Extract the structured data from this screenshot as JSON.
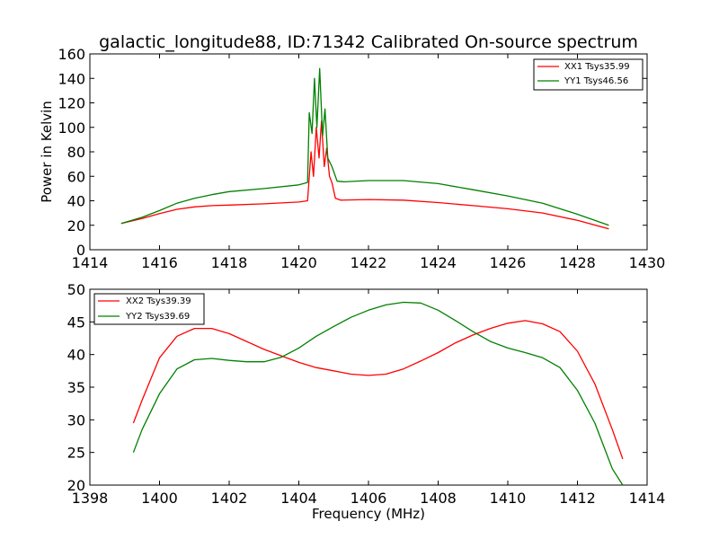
{
  "chart_data": [
    {
      "type": "line",
      "title": "galactic_longitude88, ID:71342 Calibrated On-source spectrum",
      "xlabel": "",
      "ylabel": "Power in Kelvin",
      "xlim": [
        1414,
        1430
      ],
      "ylim": [
        0,
        160
      ],
      "xticks": [
        1414,
        1416,
        1418,
        1420,
        1422,
        1424,
        1426,
        1428,
        1430
      ],
      "yticks": [
        0,
        20,
        40,
        60,
        80,
        100,
        120,
        140,
        160
      ],
      "legend_position": "top-right",
      "grid": false,
      "series": [
        {
          "name": "XX1 Tsys35.99",
          "color": "#ff0000",
          "points": [
            [
              1414.9,
              21.5
            ],
            [
              1415.5,
              25.5
            ],
            [
              1416.0,
              29.5
            ],
            [
              1416.5,
              33.0
            ],
            [
              1417.0,
              35.0
            ],
            [
              1417.5,
              36.0
            ],
            [
              1418.0,
              36.5
            ],
            [
              1419.0,
              37.5
            ],
            [
              1420.0,
              39.0
            ],
            [
              1420.25,
              40.0
            ],
            [
              1420.35,
              80.0
            ],
            [
              1420.42,
              60.0
            ],
            [
              1420.5,
              100.0
            ],
            [
              1420.58,
              75.0
            ],
            [
              1420.65,
              105.0
            ],
            [
              1420.73,
              68.0
            ],
            [
              1420.8,
              83.0
            ],
            [
              1420.88,
              60.0
            ],
            [
              1420.95,
              55.0
            ],
            [
              1421.05,
              42.0
            ],
            [
              1421.2,
              40.5
            ],
            [
              1422.0,
              41.0
            ],
            [
              1423.0,
              40.5
            ],
            [
              1424.0,
              38.5
            ],
            [
              1425.0,
              36.0
            ],
            [
              1426.0,
              33.5
            ],
            [
              1427.0,
              30.0
            ],
            [
              1428.0,
              24.0
            ],
            [
              1428.9,
              17.0
            ]
          ]
        },
        {
          "name": "YY1 Tsys46.56",
          "color": "#008000",
          "points": [
            [
              1414.9,
              21.5
            ],
            [
              1415.5,
              26.5
            ],
            [
              1416.0,
              32.0
            ],
            [
              1416.5,
              38.0
            ],
            [
              1417.0,
              42.0
            ],
            [
              1417.5,
              45.0
            ],
            [
              1418.0,
              47.5
            ],
            [
              1419.0,
              50.0
            ],
            [
              1420.0,
              53.0
            ],
            [
              1420.25,
              55.0
            ],
            [
              1420.3,
              112.0
            ],
            [
              1420.38,
              95.0
            ],
            [
              1420.45,
              140.0
            ],
            [
              1420.52,
              100.0
            ],
            [
              1420.6,
              148.0
            ],
            [
              1420.68,
              93.0
            ],
            [
              1420.75,
              115.0
            ],
            [
              1420.83,
              75.0
            ],
            [
              1420.95,
              68.0
            ],
            [
              1421.1,
              56.0
            ],
            [
              1421.3,
              55.5
            ],
            [
              1422.0,
              56.5
            ],
            [
              1423.0,
              56.5
            ],
            [
              1424.0,
              54.0
            ],
            [
              1425.0,
              49.0
            ],
            [
              1426.0,
              44.0
            ],
            [
              1427.0,
              38.0
            ],
            [
              1428.0,
              29.0
            ],
            [
              1428.9,
              20.0
            ]
          ]
        }
      ]
    },
    {
      "type": "line",
      "title": "",
      "xlabel": "Frequency (MHz)",
      "ylabel": "",
      "xlim": [
        1398,
        1414
      ],
      "ylim": [
        20,
        50
      ],
      "xticks": [
        1398,
        1400,
        1402,
        1404,
        1406,
        1408,
        1410,
        1412,
        1414
      ],
      "yticks": [
        20,
        25,
        30,
        35,
        40,
        45,
        50
      ],
      "legend_position": "top-left",
      "grid": false,
      "series": [
        {
          "name": "XX2 Tsys39.39",
          "color": "#ff0000",
          "points": [
            [
              1399.25,
              29.5
            ],
            [
              1399.5,
              33.0
            ],
            [
              1400.0,
              39.5
            ],
            [
              1400.5,
              42.8
            ],
            [
              1401.0,
              44.0
            ],
            [
              1401.5,
              44.0
            ],
            [
              1402.0,
              43.2
            ],
            [
              1402.5,
              42.0
            ],
            [
              1403.0,
              40.8
            ],
            [
              1403.5,
              39.8
            ],
            [
              1404.0,
              38.8
            ],
            [
              1404.5,
              38.0
            ],
            [
              1405.0,
              37.5
            ],
            [
              1405.5,
              37.0
            ],
            [
              1406.0,
              36.8
            ],
            [
              1406.5,
              37.0
            ],
            [
              1407.0,
              37.8
            ],
            [
              1407.5,
              39.0
            ],
            [
              1408.0,
              40.3
            ],
            [
              1408.5,
              41.8
            ],
            [
              1409.0,
              43.0
            ],
            [
              1409.5,
              44.0
            ],
            [
              1410.0,
              44.8
            ],
            [
              1410.5,
              45.2
            ],
            [
              1411.0,
              44.7
            ],
            [
              1411.5,
              43.5
            ],
            [
              1412.0,
              40.5
            ],
            [
              1412.5,
              35.5
            ],
            [
              1413.0,
              28.5
            ],
            [
              1413.3,
              24.0
            ]
          ]
        },
        {
          "name": "YY2 Tsys39.69",
          "color": "#008000",
          "points": [
            [
              1399.25,
              25.0
            ],
            [
              1399.5,
              28.5
            ],
            [
              1400.0,
              34.0
            ],
            [
              1400.5,
              37.8
            ],
            [
              1401.0,
              39.2
            ],
            [
              1401.5,
              39.4
            ],
            [
              1402.0,
              39.1
            ],
            [
              1402.5,
              38.9
            ],
            [
              1403.0,
              38.9
            ],
            [
              1403.5,
              39.6
            ],
            [
              1404.0,
              41.0
            ],
            [
              1404.5,
              42.8
            ],
            [
              1405.0,
              44.3
            ],
            [
              1405.5,
              45.7
            ],
            [
              1406.0,
              46.8
            ],
            [
              1406.5,
              47.6
            ],
            [
              1407.0,
              48.0
            ],
            [
              1407.5,
              47.9
            ],
            [
              1408.0,
              46.8
            ],
            [
              1408.5,
              45.2
            ],
            [
              1409.0,
              43.5
            ],
            [
              1409.5,
              42.0
            ],
            [
              1410.0,
              41.0
            ],
            [
              1410.5,
              40.3
            ],
            [
              1411.0,
              39.5
            ],
            [
              1411.5,
              38.0
            ],
            [
              1412.0,
              34.5
            ],
            [
              1412.5,
              29.5
            ],
            [
              1413.0,
              22.5
            ],
            [
              1413.3,
              20.0
            ]
          ]
        }
      ]
    }
  ]
}
